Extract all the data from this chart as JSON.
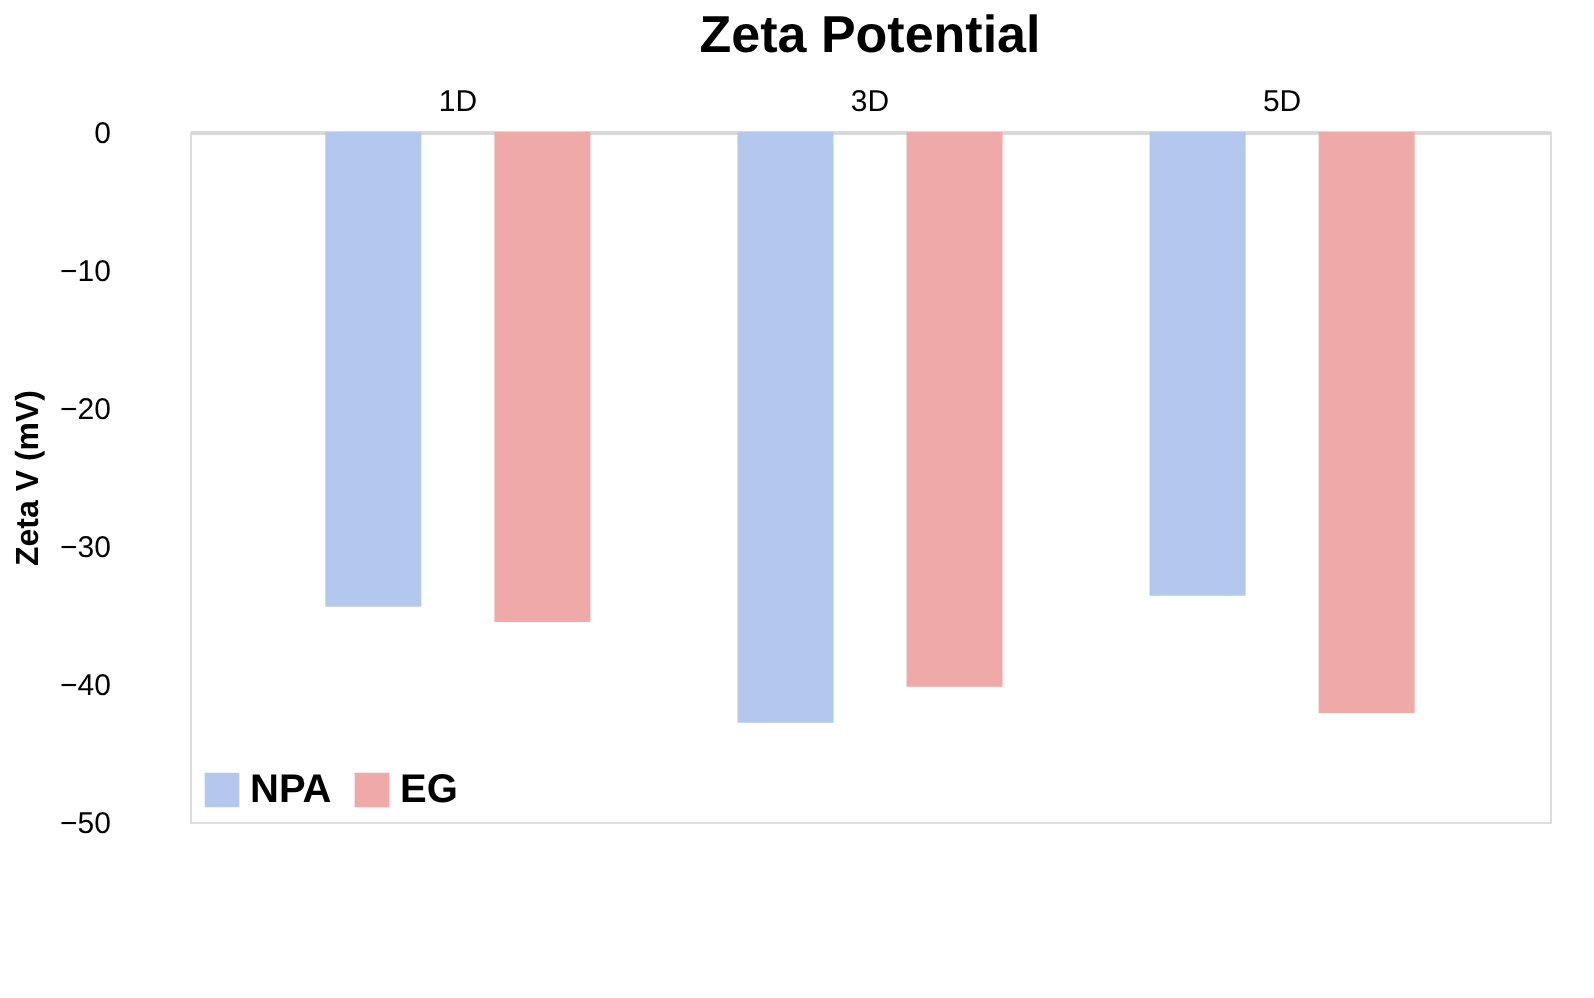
{
  "chart_data": {
    "type": "bar",
    "title": "Zeta Potential",
    "ylabel": "Zeta V (mV)",
    "categories": [
      "1D",
      "3D",
      "5D"
    ],
    "series": [
      {
        "name": "NPA",
        "color": "#b4c7ec",
        "values": [
          -34.4,
          -42.8,
          -33.6
        ]
      },
      {
        "name": "EG",
        "color": "#f0a9a9",
        "values": [
          -35.5,
          -40.2,
          -42.1
        ]
      }
    ],
    "ylim": [
      -50,
      0
    ],
    "yticks": [
      -50,
      -40,
      -30,
      -20,
      -10,
      0
    ],
    "grid": false,
    "legend": "bottom left"
  }
}
